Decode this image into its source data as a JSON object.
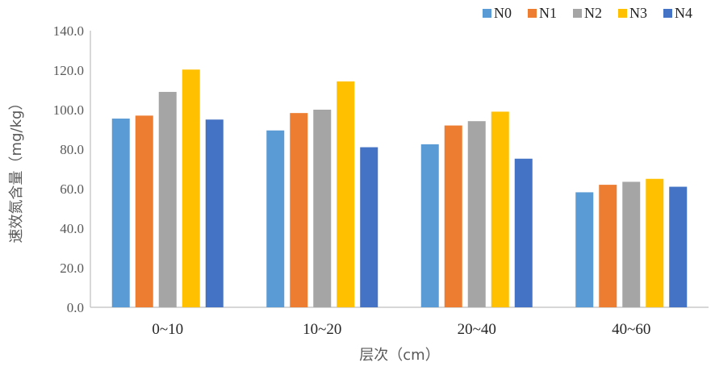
{
  "chart_data": {
    "type": "bar",
    "title": "",
    "xlabel": "层次（cm）",
    "ylabel": "速效氮含量（mg/kg）",
    "categories": [
      "0~10",
      "10~20",
      "20~40",
      "40~60"
    ],
    "ylim": [
      0,
      140
    ],
    "yticks": [
      "0.0",
      "20.0",
      "40.0",
      "60.0",
      "80.0",
      "100.0",
      "120.0",
      "140.0"
    ],
    "legend_position": "top-right",
    "grid": false,
    "series": [
      {
        "name": "N0",
        "color": "#5b9bd5",
        "values": [
          95.5,
          89.5,
          82.5,
          58.2
        ]
      },
      {
        "name": "N1",
        "color": "#ed7d31",
        "values": [
          97.0,
          98.3,
          92.0,
          62.0
        ]
      },
      {
        "name": "N2",
        "color": "#a5a5a5",
        "values": [
          109.0,
          100.0,
          94.2,
          63.5
        ]
      },
      {
        "name": "N3",
        "color": "#ffc000",
        "values": [
          120.3,
          114.3,
          99.0,
          65.0
        ]
      },
      {
        "name": "N4",
        "color": "#4472c4",
        "values": [
          95.0,
          81.0,
          75.2,
          61.0
        ]
      }
    ]
  }
}
